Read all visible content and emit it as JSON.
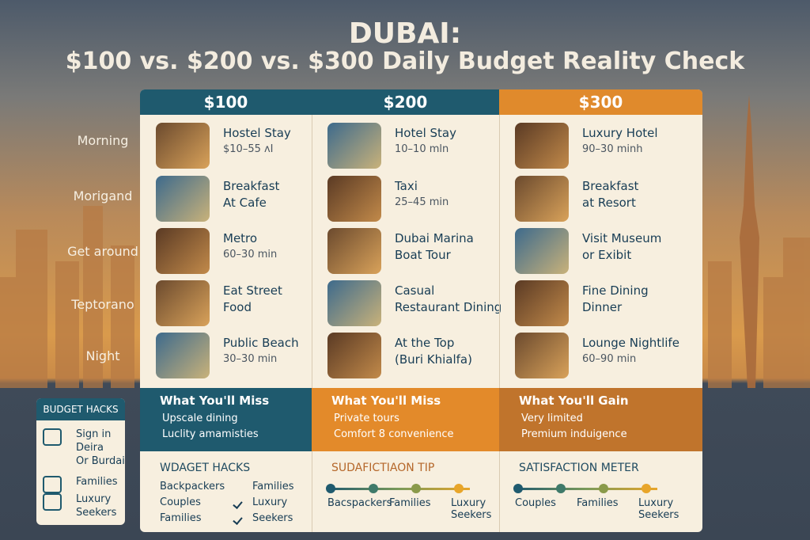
{
  "title": "DUBAI:",
  "subtitle": "$100 vs. $200 vs. $300 Daily Budget Reality Check",
  "row_labels": [
    "Morning",
    "Morigand",
    "Get around",
    "Teptorano",
    "Night"
  ],
  "columns": [
    {
      "header": "$100",
      "items": [
        {
          "title": [
            "Hostel Stay"
          ],
          "detail": "$10–55 ʌI"
        },
        {
          "title": [
            "Breakfast",
            "At Cafe"
          ]
        },
        {
          "title": [
            "Metro"
          ],
          "detail": "60–30 min"
        },
        {
          "title": [
            "Eat Street",
            "Food"
          ]
        },
        {
          "title": [
            "Public Beach"
          ],
          "detail": "30–30 min"
        }
      ],
      "band": {
        "heading": "What You'll Miss",
        "bullets": [
          "Upscale dining",
          "Luclity amamisties"
        ]
      },
      "footer": {
        "heading": "WDAGET HACKS",
        "labels": [
          [
            "Backpackers",
            "Families"
          ],
          [
            "Couples",
            "Luxury"
          ],
          [
            "Families",
            "Seekers"
          ]
        ]
      }
    },
    {
      "header": "$200",
      "items": [
        {
          "title": [
            "Hotel Stay"
          ],
          "detail": "10–10 mln"
        },
        {
          "title": [
            "Taxi"
          ],
          "detail": "25–45 min"
        },
        {
          "title": [
            "Dubai Marina",
            "Boat Tour"
          ]
        },
        {
          "title": [
            "Casual",
            "Restaurant Dining"
          ]
        },
        {
          "title": [
            "At the Top",
            "(Buri Khialfa)"
          ]
        }
      ],
      "band": {
        "heading": "What You'll Miss",
        "bullets": [
          "Private tours",
          "Comfort 8 convenience"
        ]
      },
      "footer": {
        "heading": "SUDAFICTIAON TIP",
        "labels": [
          "Bacspackers",
          "Families",
          "Luxury Seekers"
        ]
      }
    },
    {
      "header": "$300",
      "items": [
        {
          "title": [
            "Luxury Hotel"
          ],
          "detail": "90–30 minh"
        },
        {
          "title": [
            "Breakfast",
            "at Resort"
          ]
        },
        {
          "title": [
            "Visit Museum",
            "or Exibit"
          ]
        },
        {
          "title": [
            "Fine Dining",
            "Dinner"
          ]
        },
        {
          "title": [
            "Lounge Nightlife"
          ],
          "detail": "60–90 min"
        }
      ],
      "band": {
        "heading": "What You'll Gain",
        "bullets": [
          "Very limited",
          "Premium induigence"
        ]
      },
      "footer": {
        "heading": "SATISFACTION METER",
        "labels": [
          "Couples",
          "Families",
          "Luxury Seekers"
        ]
      }
    }
  ],
  "side_box": {
    "heading": "BUDGET HACKS",
    "items": [
      [
        "Sign in",
        "Deira",
        "Or Burdai"
      ],
      [
        "Families"
      ],
      [
        "Luxury",
        "Seekers"
      ]
    ]
  }
}
